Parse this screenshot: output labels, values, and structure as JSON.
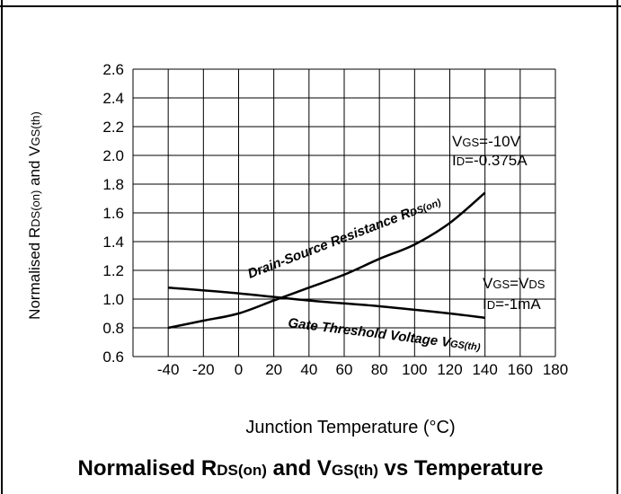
{
  "chart_data": {
    "type": "line",
    "title": "Normalised R<sub>DS(on)</sub> and V<sub>GS(th)</sub> vs Temperature",
    "xlabel": "Junction Temperature (°C)",
    "ylabel": "Normalised R<sub>DS(on)</sub> and V<sub>GS(th)</sub>",
    "xlim": [
      -60,
      180
    ],
    "ylim": [
      0.6,
      2.6
    ],
    "x_ticks": [
      -40,
      -20,
      0,
      20,
      40,
      60,
      80,
      100,
      120,
      140,
      160,
      180
    ],
    "y_ticks": [
      "2.6",
      "2.4",
      "2.2",
      "2.0",
      "1.8",
      "1.6",
      "1.4",
      "1.2",
      "1.0",
      "0.8",
      "0.6"
    ],
    "grid": true,
    "series": [
      {
        "name": "Drain-Source Resistance R<sub>DS(on)</sub>",
        "x": [
          -40,
          -20,
          0,
          20,
          40,
          60,
          80,
          100,
          120,
          140
        ],
        "y": [
          0.8,
          0.85,
          0.9,
          0.99,
          1.08,
          1.17,
          1.28,
          1.38,
          1.53,
          1.74
        ],
        "annotation_lines": [
          "V<sub>GS</sub>=-10V",
          "I<sub>D</sub>=-0.375A"
        ]
      },
      {
        "name": "Gate Threshold Voltage V<sub>GS(th)</sub>",
        "x": [
          -40,
          0,
          40,
          80,
          120,
          140
        ],
        "y": [
          1.08,
          1.04,
          0.99,
          0.95,
          0.9,
          0.87
        ],
        "annotation_lines": [
          "V<sub>GS</sub>=V<sub>DS</sub>",
          "I<sub>D</sub>=-1mA"
        ]
      }
    ]
  },
  "style": {
    "line_color": "#000000",
    "grid_color": "#000000",
    "background": "#ffffff"
  }
}
